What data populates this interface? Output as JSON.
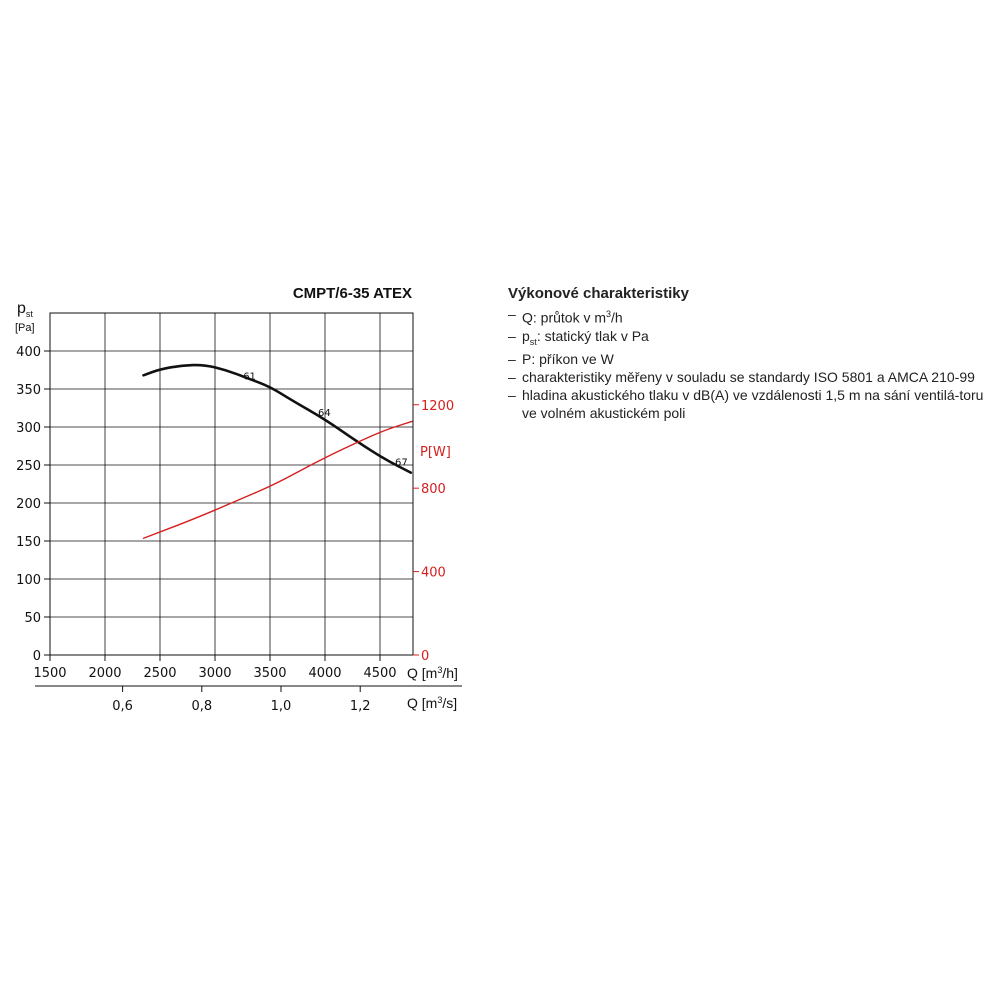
{
  "chart_data": {
    "type": "line",
    "title": "CMPT/6-35 ATEX",
    "y_left": {
      "label_main": "p",
      "label_sub": "st",
      "unit": "[Pa]",
      "ticks": [
        0,
        50,
        100,
        150,
        200,
        250,
        300,
        350,
        400
      ],
      "ylim": [
        0,
        450
      ]
    },
    "y_right": {
      "label": "P[W]",
      "ticks": [
        0,
        400,
        800,
        1200
      ],
      "ylim": [
        0,
        1640
      ]
    },
    "x": {
      "label_main": "Q [m",
      "label_sup": "3",
      "label_end": "/h]",
      "ticks": [
        1500,
        2000,
        2500,
        3000,
        3500,
        4000,
        4500
      ],
      "xlim": [
        1500,
        4800
      ]
    },
    "x_secondary": {
      "label_main": "Q [m",
      "label_sup": "3",
      "label_end": "/s]",
      "ticks": [
        "0,6",
        "0,8",
        "1,0",
        "1,2"
      ],
      "tick_values_m3h": [
        2160,
        2880,
        3600,
        4320
      ]
    },
    "grid": true,
    "series": [
      {
        "role": "pressure",
        "axis": "left",
        "color": "#111111",
        "points": [
          [
            2350,
            368
          ],
          [
            2500,
            376
          ],
          [
            2700,
            381
          ],
          [
            2900,
            382
          ],
          [
            3100,
            375
          ],
          [
            3300,
            364
          ],
          [
            3500,
            353
          ],
          [
            3700,
            335
          ],
          [
            4000,
            310
          ],
          [
            4300,
            280
          ],
          [
            4550,
            257
          ],
          [
            4780,
            240
          ]
        ]
      },
      {
        "role": "power",
        "axis": "right",
        "color": "#d42020",
        "points": [
          [
            2350,
            560
          ],
          [
            2800,
            650
          ],
          [
            3200,
            740
          ],
          [
            3550,
            820
          ],
          [
            3900,
            920
          ],
          [
            4250,
            1010
          ],
          [
            4550,
            1080
          ],
          [
            4790,
            1120
          ]
        ]
      }
    ],
    "annotations": [
      {
        "text": "61",
        "x": 3420,
        "y": 360
      },
      {
        "text": "64",
        "x": 4100,
        "y": 312
      },
      {
        "text": "67",
        "x": 4800,
        "y": 247
      }
    ]
  },
  "description": {
    "heading": "Výkonové charakteristiky",
    "items": [
      {
        "dash": "–",
        "pre": "Q: průtok v m",
        "sup": "3",
        "post": "/h"
      },
      {
        "dash": "–",
        "pre": "p",
        "sub": "st",
        "post": ": statický tlak v Pa"
      },
      {
        "dash": "–",
        "pre": "P: příkon ve W"
      },
      {
        "dash": "–",
        "pre": "charakteristiky měřeny v souladu se standardy ISO 5801 a AMCA 210-99"
      },
      {
        "dash": "–",
        "pre": "hladina akustického tlaku v dB(A) ve vzdálenosti 1,5 m na sání ventilá-toru ve volném akustickém poli"
      }
    ]
  }
}
